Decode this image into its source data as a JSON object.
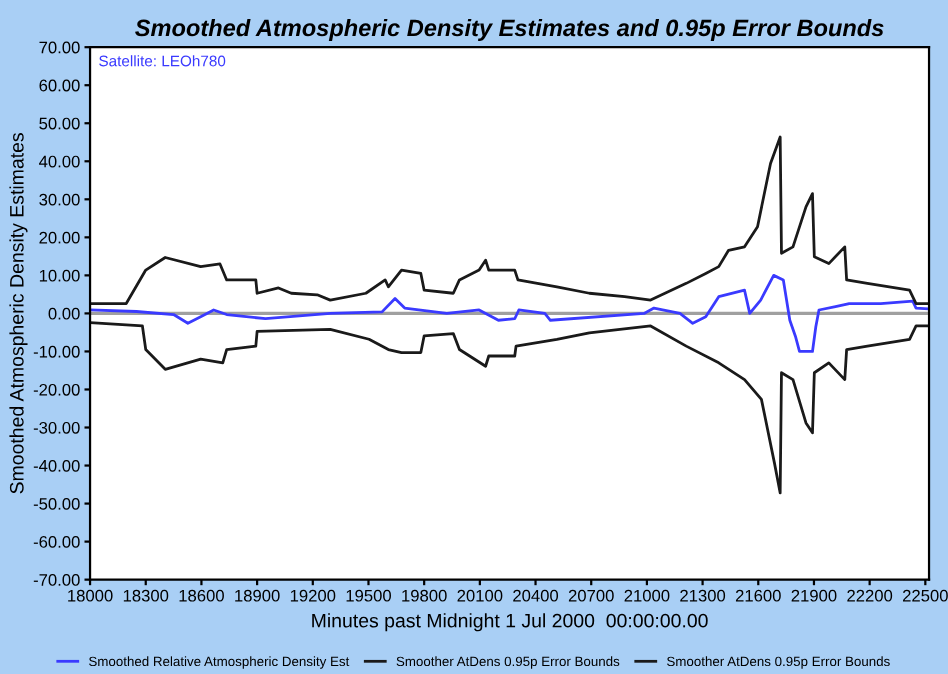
{
  "chart_data": {
    "type": "line",
    "title": "Smoothed Atmospheric Density Estimates and 0.95p Error Bounds",
    "xlabel": "Minutes past Midnight 1 Jul 2000  00:00:00.00",
    "ylabel": "Smoothed Atmospheric Density Estimates",
    "annotations": [
      "Satellite: LEOh780"
    ],
    "xlim": [
      18000,
      22520
    ],
    "xticks": [
      18000,
      18300,
      18600,
      18900,
      19200,
      19500,
      19800,
      20100,
      20400,
      20700,
      21000,
      21300,
      21600,
      21900,
      22200,
      22500
    ],
    "ylim": [
      -70,
      70
    ],
    "yticks": [
      {
        "value": -70,
        "label": "-70.00"
      },
      {
        "value": -60,
        "label": "-60.00"
      },
      {
        "value": -50,
        "label": "-50.00"
      },
      {
        "value": -40,
        "label": "-40.00"
      },
      {
        "value": -30,
        "label": "-30.00"
      },
      {
        "value": -20,
        "label": "-20.00"
      },
      {
        "value": -10,
        "label": "-10.00"
      },
      {
        "value": 0,
        "label": "0.00"
      },
      {
        "value": 10,
        "label": "10.00"
      },
      {
        "value": 20,
        "label": "20.00"
      },
      {
        "value": 30,
        "label": "30.00"
      },
      {
        "value": 40,
        "label": "40.00"
      },
      {
        "value": 50,
        "label": "50.00"
      },
      {
        "value": 60,
        "label": "60.00"
      },
      {
        "value": 70,
        "label": "70.00"
      }
    ],
    "ref_lines": [
      {
        "axis": "y",
        "value": 0,
        "color": "#a0a0a0"
      }
    ],
    "grid": false,
    "legend": "bottom",
    "marker": "none",
    "line_style": "solid",
    "series": [
      {
        "name": "Smoothed Relative Atmospheric Density Est",
        "color": "#3a3aff",
        "x": [
          18000,
          18250,
          18450,
          18527,
          18596,
          18666,
          18736,
          18945,
          19294,
          19573,
          19643,
          19695,
          19922,
          20096,
          20200,
          20288,
          20310,
          20450,
          20480,
          20985,
          21038,
          21178,
          21247,
          21317,
          21387,
          21526,
          21554,
          21613,
          21683,
          21735,
          21770,
          21800,
          21822,
          21892,
          21910,
          21927,
          22016,
          22090,
          22260,
          22432,
          22450,
          22510
        ],
        "values": [
          0.9,
          0.5,
          -0.3,
          -2.6,
          -0.9,
          0.9,
          -0.3,
          -1.4,
          0,
          0.4,
          3.9,
          1.4,
          0,
          0.9,
          -1.8,
          -1.4,
          0.9,
          0,
          -1.8,
          0,
          1.4,
          0,
          -2.6,
          -0.9,
          4.4,
          6.1,
          0,
          3.5,
          10,
          8.8,
          -1.8,
          -6,
          -10,
          -10,
          -3.5,
          0.9,
          1.8,
          2.6,
          2.6,
          3.2,
          1.4,
          1.2
        ]
      },
      {
        "name": "Smoother AtDens 0.95p Error Bounds",
        "color": "#1a1a1a",
        "x": [
          18000,
          18195,
          18300,
          18405,
          18596,
          18700,
          18736,
          18893,
          18900,
          19015,
          19084,
          19224,
          19294,
          19486,
          19590,
          19607,
          19678,
          19782,
          19800,
          19957,
          19990,
          20096,
          20131,
          20148,
          20288,
          20305,
          20515,
          20690,
          20880,
          21020,
          21212,
          21317,
          21387,
          21440,
          21526,
          21596,
          21666,
          21718,
          21725,
          21787,
          21857,
          21892,
          21902,
          21980,
          22066,
          22076,
          22188,
          22415,
          22450,
          22510
        ],
        "values": [
          2.6,
          2.6,
          11.4,
          14.7,
          12.3,
          13,
          8.8,
          8.8,
          5.3,
          6.7,
          5.3,
          4.9,
          3.5,
          5.3,
          8.8,
          7,
          11.4,
          10.5,
          6.1,
          5.3,
          8.8,
          11.4,
          14,
          11.4,
          11.4,
          8.8,
          7,
          5.3,
          4.4,
          3.5,
          7.9,
          10.5,
          12.3,
          16.6,
          17.5,
          22.8,
          39.4,
          46.4,
          15.8,
          17.5,
          28,
          31.5,
          14.9,
          13.1,
          17.5,
          8.8,
          7.9,
          6.1,
          2.6,
          2.6
        ]
      },
      {
        "name": "Smoother AtDens 0.95p Error Bounds",
        "color": "#1a1a1a",
        "x": [
          18000,
          18282,
          18300,
          18405,
          18596,
          18715,
          18736,
          18893,
          18900,
          19294,
          19503,
          19607,
          19678,
          19782,
          19800,
          19957,
          19990,
          20131,
          20148,
          20288,
          20295,
          20515,
          20690,
          21020,
          21212,
          21387,
          21526,
          21617,
          21687,
          21718,
          21725,
          21787,
          21857,
          21892,
          21902,
          21980,
          22066,
          22076,
          22188,
          22415,
          22450,
          22510
        ],
        "values": [
          -2.4,
          -3.3,
          -9.5,
          -14.7,
          -12,
          -13,
          -9.5,
          -8.6,
          -4.7,
          -4.2,
          -6.8,
          -9.5,
          -10.3,
          -10.3,
          -5.9,
          -5.3,
          -9.5,
          -13.9,
          -11.2,
          -11.2,
          -8.6,
          -6.8,
          -5.1,
          -3.3,
          -8.6,
          -13,
          -17.4,
          -22.6,
          -39.3,
          -47.2,
          -15.6,
          -17.4,
          -28.8,
          -31.4,
          -15.6,
          -13,
          -17.4,
          -9.5,
          -8.6,
          -6.8,
          -3.3,
          -3.3
        ]
      }
    ]
  }
}
